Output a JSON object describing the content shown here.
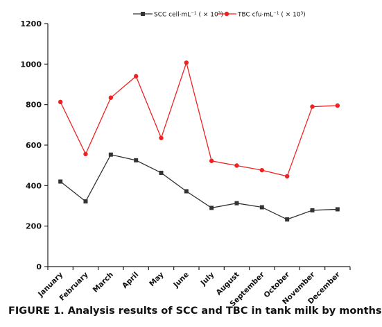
{
  "caption": "FIGURE 1. Analysis results of SCC and TBC in tank milk by months",
  "chart_data": {
    "type": "line",
    "categories": [
      "January",
      "February",
      "March",
      "April",
      "May",
      "June",
      "July",
      "August",
      "September",
      "October",
      "November",
      "December"
    ],
    "series": [
      {
        "name": "SCC cell·mL⁻¹ ( × 10³)",
        "color": "#333333",
        "marker": "square",
        "values": [
          420,
          322,
          553,
          525,
          463,
          372,
          290,
          313,
          293,
          233,
          278,
          283
        ]
      },
      {
        "name": "TBC cfu·mL⁻¹ ( × 10³)",
        "color": "#ee2222",
        "marker": "circle",
        "values": [
          813,
          556,
          834,
          940,
          635,
          1007,
          522,
          499,
          476,
          446,
          790,
          795
        ]
      }
    ],
    "ylim": [
      0,
      1200
    ],
    "yticks": [
      0,
      200,
      400,
      600,
      800,
      1000,
      1200
    ],
    "xlabel": "",
    "ylabel": "",
    "title": "",
    "legend": "top",
    "grid": false
  }
}
